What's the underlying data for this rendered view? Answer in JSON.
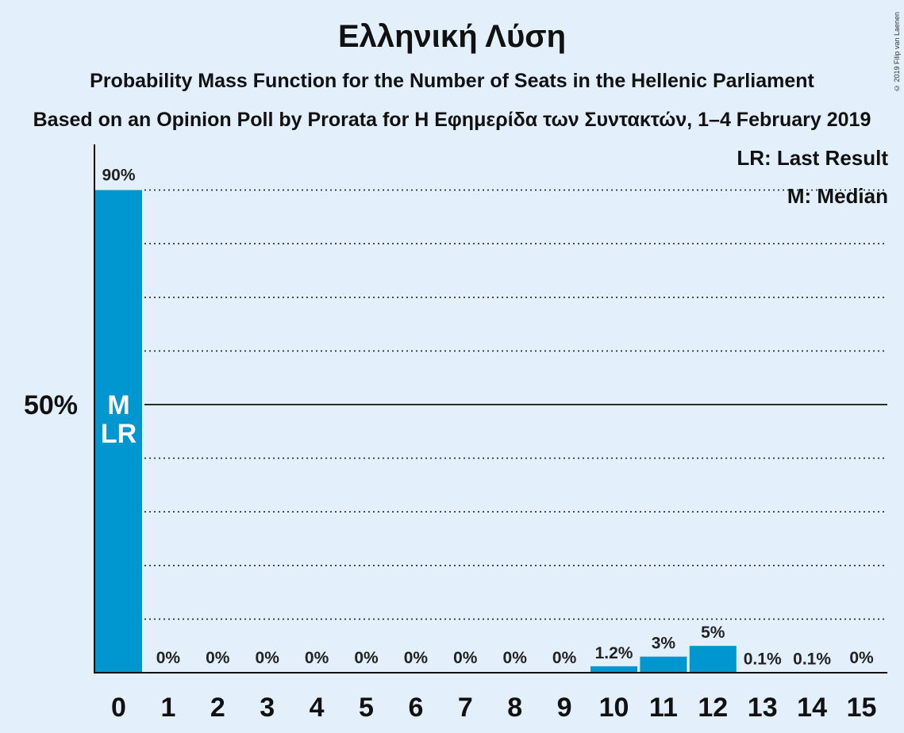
{
  "header": {
    "title": "Ελληνική Λύση",
    "subtitle": "Probability Mass Function for the Number of Seats in the Hellenic Parliament",
    "subtitle2": "Based on an Opinion Poll by Prorata for Η Εφημερίδα των Συντακτών, 1–4 February 2019",
    "copyright": "© 2019 Filip van Laenen"
  },
  "legend": {
    "lr": "LR: Last Result",
    "m": "M: Median"
  },
  "colors": {
    "bar": "#0096d0",
    "background": "#e3f0fc"
  },
  "chart_data": {
    "type": "bar",
    "title": "Ελληνική Λύση",
    "categories": [
      "0",
      "1",
      "2",
      "3",
      "4",
      "5",
      "6",
      "7",
      "8",
      "9",
      "10",
      "11",
      "12",
      "13",
      "14",
      "15"
    ],
    "values": [
      90,
      0,
      0,
      0,
      0,
      0,
      0,
      0,
      0,
      0,
      1.2,
      3,
      5,
      0.1,
      0.1,
      0
    ],
    "labels": [
      "90%",
      "0%",
      "0%",
      "0%",
      "0%",
      "0%",
      "0%",
      "0%",
      "0%",
      "0%",
      "1.2%",
      "3%",
      "5%",
      "0.1%",
      "0.1%",
      "0%"
    ],
    "ylim": [
      0,
      100
    ],
    "ytick_label": "50%",
    "ytick_value": 50,
    "gridlines": [
      10,
      20,
      30,
      40,
      60,
      70,
      80,
      90
    ],
    "median_index": 0,
    "median_marker": "M",
    "last_result_index": 0,
    "last_result_marker": "LR"
  }
}
